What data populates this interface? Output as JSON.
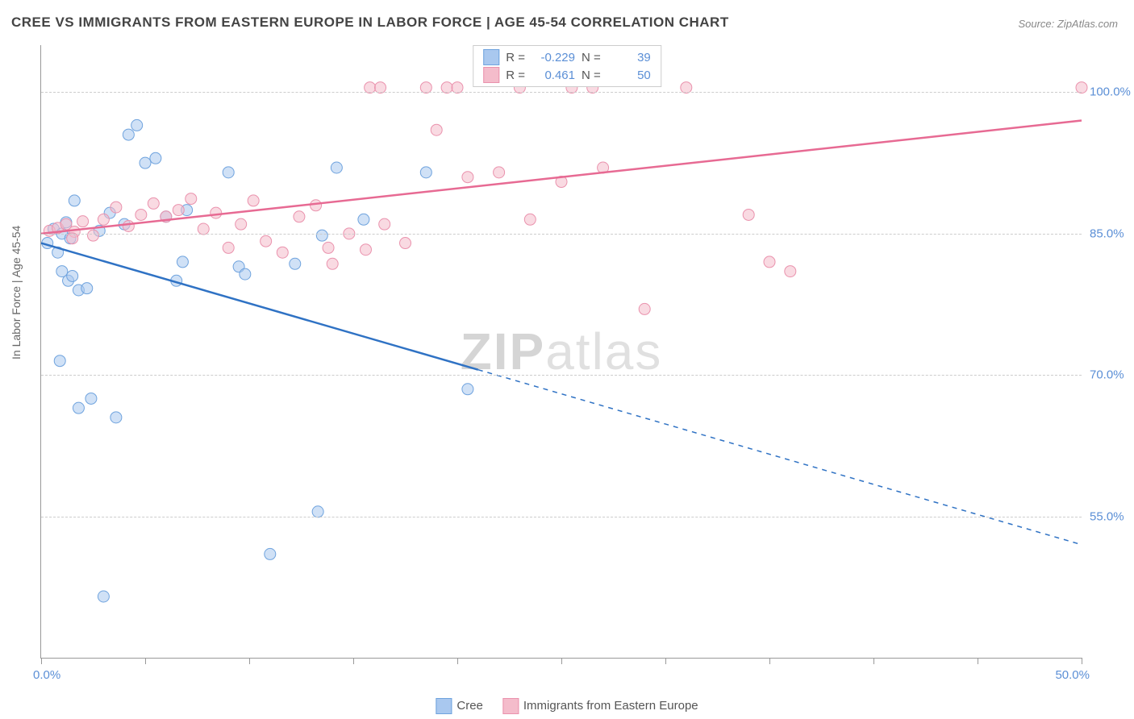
{
  "title": "CREE VS IMMIGRANTS FROM EASTERN EUROPE IN LABOR FORCE | AGE 45-54 CORRELATION CHART",
  "source": "Source: ZipAtlas.com",
  "watermark_a": "ZIP",
  "watermark_b": "atlas",
  "chart": {
    "type": "scatter-correlation",
    "y_axis_title": "In Labor Force | Age 45-54",
    "xlim": [
      0,
      50
    ],
    "ylim": [
      40,
      105
    ],
    "x_ticks": [
      0,
      5,
      10,
      15,
      20,
      25,
      30,
      35,
      40,
      45,
      50
    ],
    "x_tick_labels_shown": {
      "0": "0.0%",
      "50": "50.0%"
    },
    "y_gridlines": [
      55,
      70,
      85,
      100
    ],
    "y_tick_labels": {
      "55": "55.0%",
      "70": "70.0%",
      "85": "85.0%",
      "100": "100.0%"
    },
    "grid_color": "#cccccc",
    "axis_color": "#999999",
    "tick_label_color": "#5b8fd6",
    "background_color": "#ffffff",
    "marker_radius": 7,
    "marker_opacity": 0.55,
    "line_width": 2.5,
    "series": [
      {
        "name": "Cree",
        "color_fill": "#a9c8ef",
        "color_stroke": "#6fa3de",
        "line_color": "#2f72c4",
        "R": "-0.229",
        "N": "39",
        "regression": {
          "x0": 0,
          "y0": 84,
          "x1": 50,
          "y1": 52,
          "solid_until_x": 21
        },
        "points": [
          [
            0.3,
            84
          ],
          [
            0.6,
            85.5
          ],
          [
            0.8,
            83
          ],
          [
            1.0,
            85
          ],
          [
            1.2,
            86.2
          ],
          [
            1.4,
            84.5
          ],
          [
            1.6,
            88.5
          ],
          [
            1.0,
            81
          ],
          [
            1.3,
            80
          ],
          [
            1.5,
            80.5
          ],
          [
            1.8,
            79
          ],
          [
            2.2,
            79.2
          ],
          [
            0.9,
            71.5
          ],
          [
            1.8,
            66.5
          ],
          [
            2.4,
            67.5
          ],
          [
            3.6,
            65.5
          ],
          [
            4.2,
            95.5
          ],
          [
            4.6,
            96.5
          ],
          [
            5.0,
            92.5
          ],
          [
            5.5,
            93
          ],
          [
            6.5,
            80
          ],
          [
            6.8,
            82
          ],
          [
            9.0,
            91.5
          ],
          [
            9.5,
            81.5
          ],
          [
            9.8,
            80.7
          ],
          [
            12.2,
            81.8
          ],
          [
            3.3,
            87.2
          ],
          [
            4.0,
            86
          ],
          [
            6.0,
            86.8
          ],
          [
            7.0,
            87.5
          ],
          [
            3.0,
            46.5
          ],
          [
            11.0,
            51
          ],
          [
            13.3,
            55.5
          ],
          [
            14.2,
            92
          ],
          [
            13.5,
            84.8
          ],
          [
            15.5,
            86.5
          ],
          [
            18.5,
            91.5
          ],
          [
            20.5,
            68.5
          ],
          [
            2.8,
            85.3
          ]
        ]
      },
      {
        "name": "Immigrants from Eastern Europe",
        "color_fill": "#f4bccb",
        "color_stroke": "#ea92ad",
        "line_color": "#e76a93",
        "R": "0.461",
        "N": "50",
        "regression": {
          "x0": 0,
          "y0": 85,
          "x1": 50,
          "y1": 97,
          "solid_until_x": 50
        },
        "points": [
          [
            0.4,
            85.3
          ],
          [
            0.8,
            85.6
          ],
          [
            1.2,
            86.0
          ],
          [
            1.6,
            85.2
          ],
          [
            2.0,
            86.3
          ],
          [
            1.5,
            84.5
          ],
          [
            2.5,
            84.8
          ],
          [
            3.0,
            86.5
          ],
          [
            3.6,
            87.8
          ],
          [
            4.2,
            85.8
          ],
          [
            4.8,
            87.0
          ],
          [
            5.4,
            88.2
          ],
          [
            6.0,
            86.8
          ],
          [
            6.6,
            87.5
          ],
          [
            7.2,
            88.7
          ],
          [
            7.8,
            85.5
          ],
          [
            8.4,
            87.2
          ],
          [
            9.0,
            83.5
          ],
          [
            9.6,
            86.0
          ],
          [
            10.2,
            88.5
          ],
          [
            10.8,
            84.2
          ],
          [
            11.6,
            83.0
          ],
          [
            12.4,
            86.8
          ],
          [
            13.2,
            88.0
          ],
          [
            14.0,
            81.8
          ],
          [
            14.8,
            85.0
          ],
          [
            15.6,
            83.3
          ],
          [
            16.5,
            86.0
          ],
          [
            17.5,
            84.0
          ],
          [
            18.5,
            100.5
          ],
          [
            19.5,
            100.5
          ],
          [
            15.8,
            100.5
          ],
          [
            16.3,
            100.5
          ],
          [
            19.0,
            96.0
          ],
          [
            20.5,
            91.0
          ],
          [
            22.0,
            91.5
          ],
          [
            23.5,
            86.5
          ],
          [
            25.0,
            90.5
          ],
          [
            27.0,
            92.0
          ],
          [
            20.0,
            100.5
          ],
          [
            23.0,
            100.5
          ],
          [
            25.5,
            100.5
          ],
          [
            26.5,
            100.5
          ],
          [
            29.0,
            77.0
          ],
          [
            31.0,
            100.5
          ],
          [
            34.0,
            87.0
          ],
          [
            35.0,
            82.0
          ],
          [
            36.0,
            81.0
          ],
          [
            50.0,
            100.5
          ],
          [
            13.8,
            83.5
          ]
        ]
      }
    ],
    "legend_bottom": [
      {
        "swatch_fill": "#a9c8ef",
        "swatch_stroke": "#6fa3de",
        "label": "Cree"
      },
      {
        "swatch_fill": "#f4bccb",
        "swatch_stroke": "#ea92ad",
        "label": "Immigrants from Eastern Europe"
      }
    ],
    "legend_box": {
      "rows": [
        {
          "swatch_fill": "#a9c8ef",
          "swatch_stroke": "#6fa3de",
          "r_label": "R =",
          "r_val": "-0.229",
          "n_label": "N =",
          "n_val": "39"
        },
        {
          "swatch_fill": "#f4bccb",
          "swatch_stroke": "#ea92ad",
          "r_label": "R =",
          "r_val": "0.461",
          "n_label": "N =",
          "n_val": "50"
        }
      ]
    }
  }
}
